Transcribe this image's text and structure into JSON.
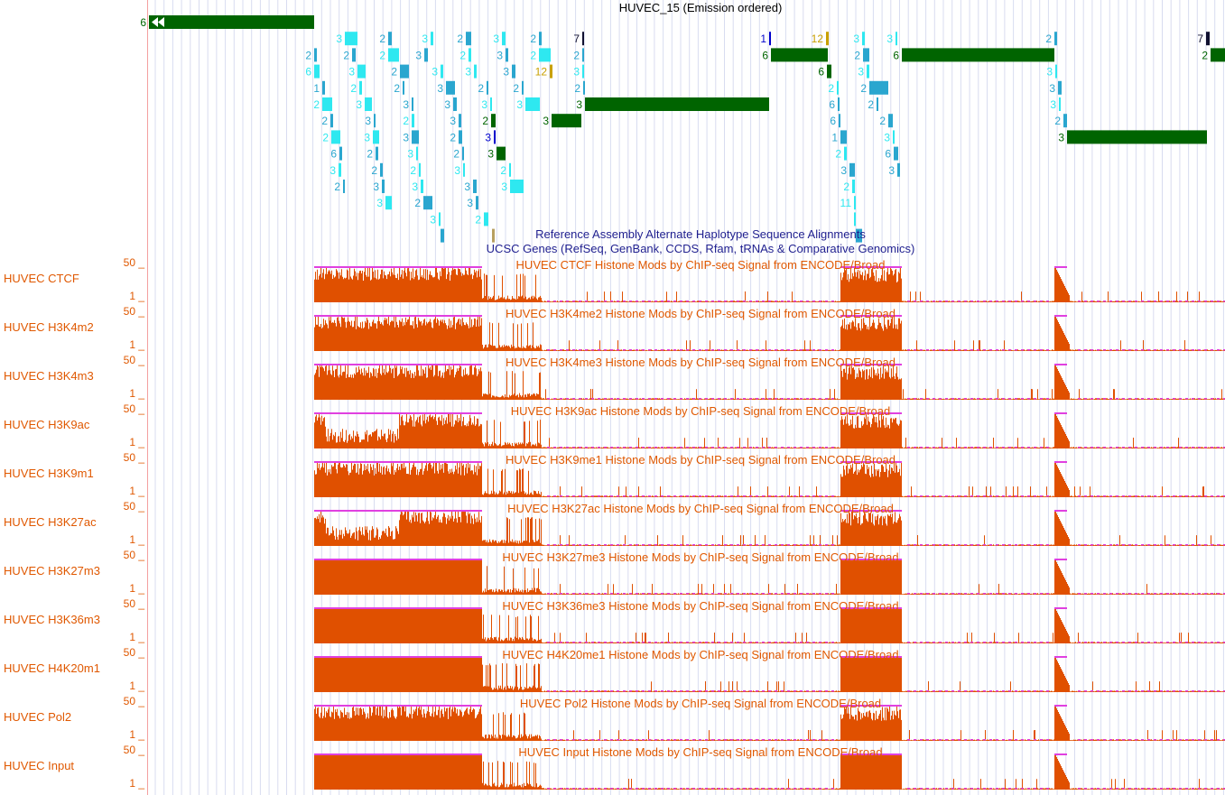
{
  "hmm_track": {
    "title": "HUVEC_15 (Emission ordered)",
    "colors": {
      "1": "#0000cc",
      "2": "#2aa6cf",
      "3": "#2ee8f0",
      "6": "#006400",
      "7": "#101030",
      "11": "#b8a060",
      "12": "#c8a000"
    },
    "state_labels": [
      "6",
      "3",
      "2",
      "3",
      "2",
      "3",
      "2",
      "7",
      "1",
      "12",
      "3",
      "3",
      "2",
      "7",
      "2",
      "2",
      "2",
      "3",
      "2",
      "3",
      "2",
      "2",
      "6",
      "2",
      "6",
      "2",
      "6",
      "3",
      "2",
      "3",
      "3",
      "3",
      "12",
      "3",
      "6",
      "3",
      "3",
      "1",
      "2",
      "2",
      "3",
      "2",
      "2",
      "2",
      "2",
      "2",
      "3",
      "2",
      "3",
      "3",
      "3",
      "3",
      "3",
      "3",
      "6",
      "2",
      "3",
      "2",
      "3",
      "2",
      "3",
      "2",
      "3",
      "6",
      "2",
      "2",
      "2",
      "3",
      "3",
      "2",
      "3",
      "1",
      "3",
      "3",
      "6",
      "2",
      "3",
      "2",
      "3",
      "2",
      "6",
      "3",
      "2",
      "2",
      "3",
      "2",
      "3",
      "3",
      "2",
      "3",
      "3",
      "3",
      "3",
      "2",
      "3",
      "2",
      "3",
      "11",
      "3",
      "2"
    ]
  },
  "notes": {
    "alt_haplotypes": "Reference Assembly Alternate Haplotype Sequence Alignments",
    "ucsc_genes": "UCSC Genes (RefSeq, GenBank, CCDS, Rfam, tRNAs & Comparative Genomics)"
  },
  "signal_tracks": [
    {
      "label": "HUVEC CTCF",
      "max": "50 _",
      "min": "1 _",
      "title": "HUVEC CTCF Histone Mods by ChIP-seq Signal from ENCODE/Broad"
    },
    {
      "label": "HUVEC H3K4m2",
      "max": "50 _",
      "min": "1 _",
      "title": "HUVEC H3K4me2 Histone Mods by ChIP-seq Signal from ENCODE/Broad"
    },
    {
      "label": "HUVEC H3K4m3",
      "max": "50 _",
      "min": "1 _",
      "title": "HUVEC H3K4me3 Histone Mods by ChIP-seq Signal from ENCODE/Broad"
    },
    {
      "label": "HUVEC H3K9ac",
      "max": "50 _",
      "min": "1 _",
      "title": "HUVEC H3K9ac Histone Mods by ChIP-seq Signal from ENCODE/Broad"
    },
    {
      "label": "HUVEC H3K9m1",
      "max": "50 _",
      "min": "1 _",
      "title": "HUVEC H3K9me1 Histone Mods by ChIP-seq Signal from ENCODE/Broad"
    },
    {
      "label": "HUVEC H3K27ac",
      "max": "50 _",
      "min": "1 _",
      "title": "HUVEC H3K27ac Histone Mods by ChIP-seq Signal from ENCODE/Broad"
    },
    {
      "label": "HUVEC H3K27m3",
      "max": "50 _",
      "min": "1 _",
      "title": "HUVEC H3K27me3 Histone Mods by ChIP-seq Signal from ENCODE/Broad"
    },
    {
      "label": "HUVEC H3K36m3",
      "max": "50 _",
      "min": "1 _",
      "title": "HUVEC H3K36me3 Histone Mods by ChIP-seq Signal from ENCODE/Broad"
    },
    {
      "label": "HUVEC H4K20m1",
      "max": "50 _",
      "min": "1 _",
      "title": "HUVEC H4K20me1 Histone Mods by ChIP-seq Signal from ENCODE/Broad"
    },
    {
      "label": "HUVEC Pol2",
      "max": "50 _",
      "min": "1 _",
      "title": "HUVEC Pol2 Histone Mods by ChIP-seq Signal from ENCODE/Broad"
    },
    {
      "label": "HUVEC Input",
      "max": "50 _",
      "min": "1 _",
      "title": "HUVEC Input Histone Mods by ChIP-seq Signal from ENCODE/Broad"
    }
  ],
  "colors": {
    "signal": "#e05000",
    "clip": "#e040e0",
    "note": "#1f1f8f",
    "label": "#e05800",
    "grid": "#d8dcf0",
    "guide": "#f4a0a0"
  }
}
